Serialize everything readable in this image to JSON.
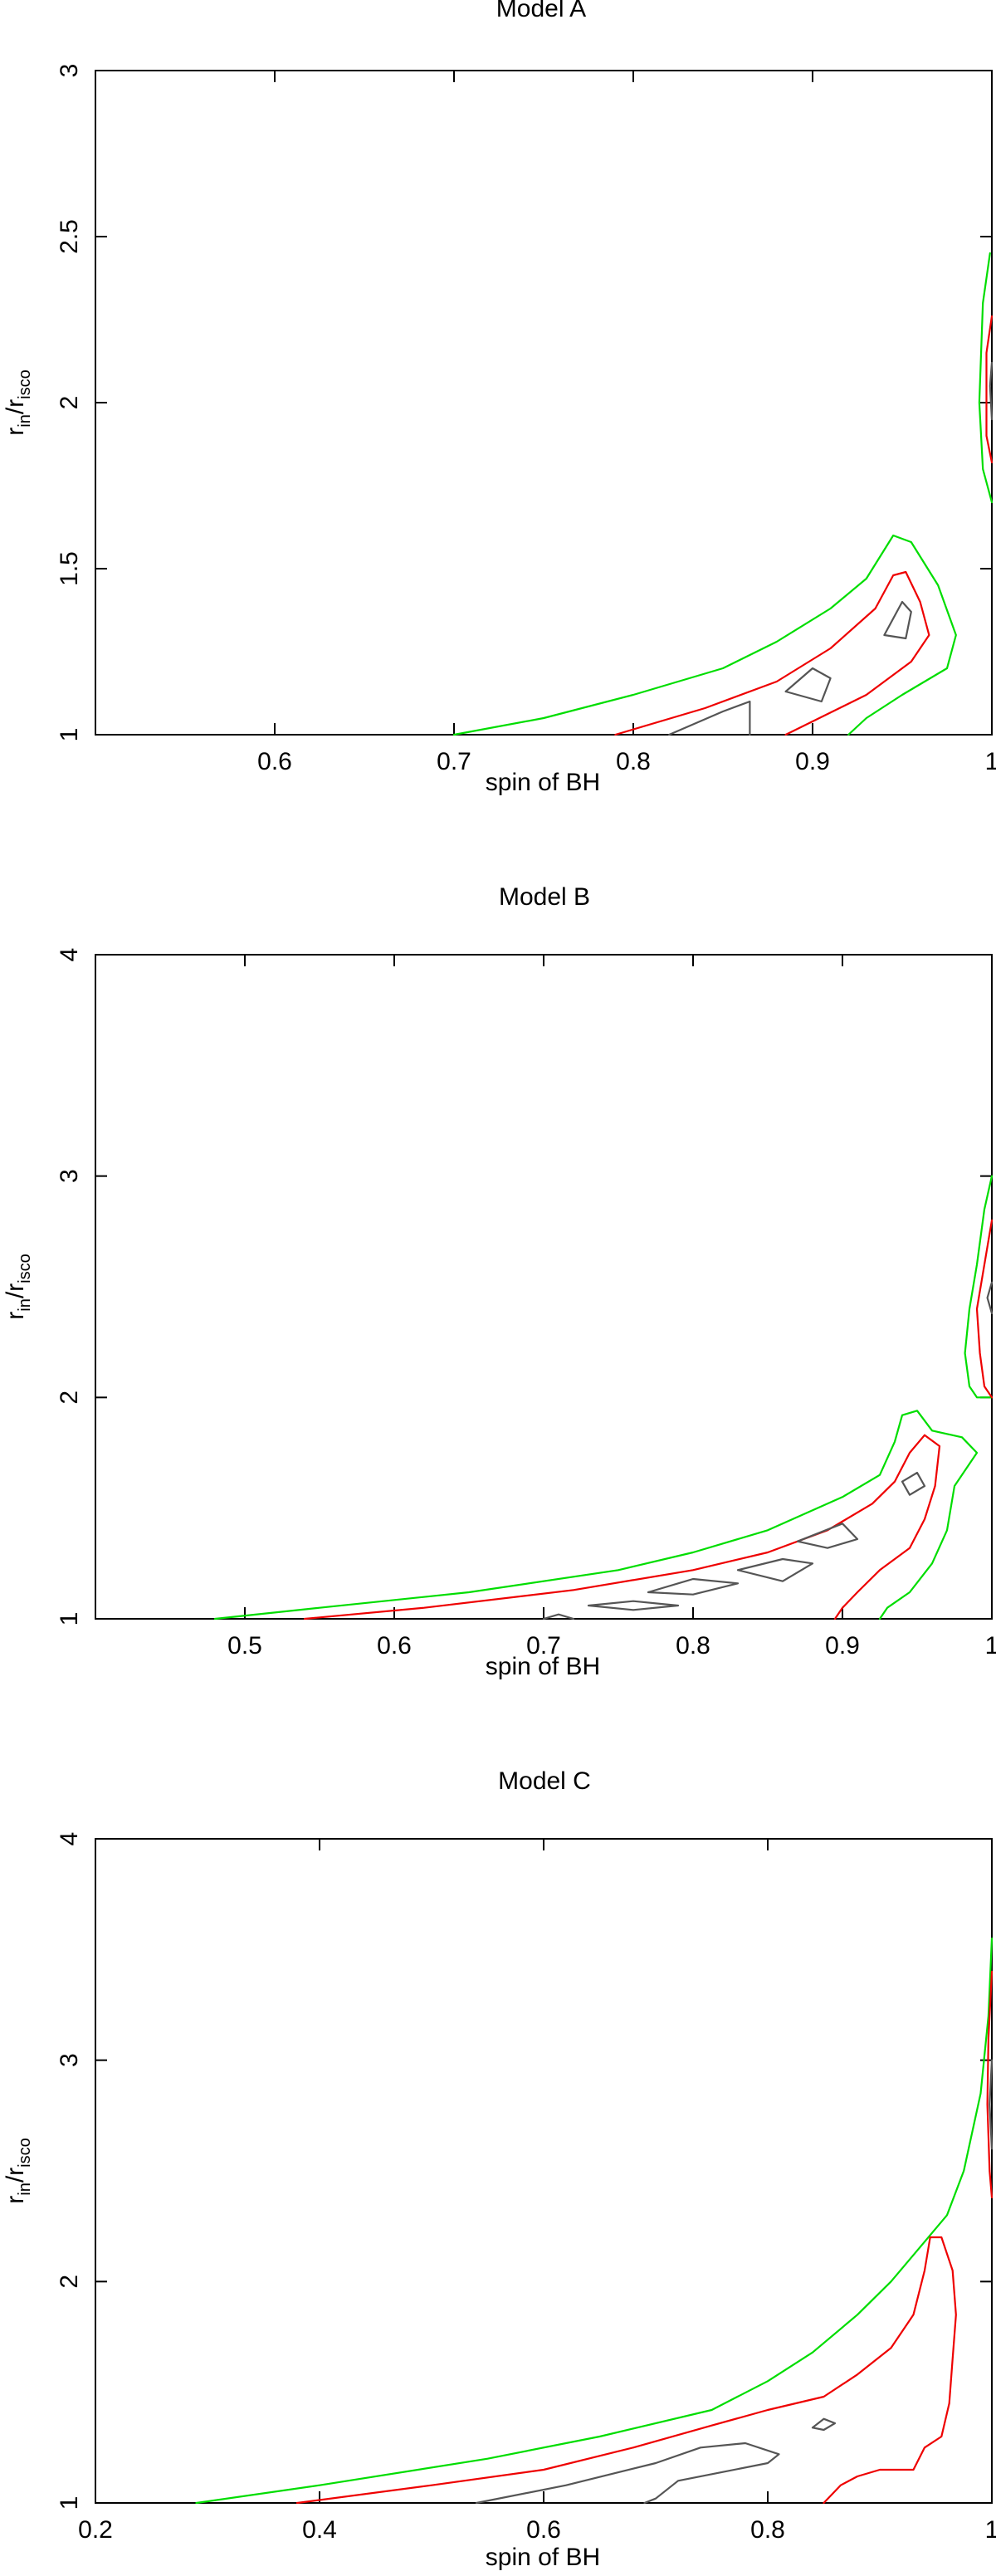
{
  "chart_data": [
    {
      "type": "contour",
      "title": "Model A",
      "xlabel": "spin of BH",
      "ylabel": {
        "main": "r",
        "sub1": "in",
        "slash": "/r",
        "sub2": "isco"
      },
      "xlim": [
        0.5,
        1.0
      ],
      "ylim": [
        1,
        3
      ],
      "xticks": [
        0.6,
        0.7,
        0.8,
        0.9,
        1
      ],
      "xtick_labels": [
        "0.6",
        "0.7",
        "0.8",
        "0.9",
        "1"
      ],
      "yticks": [
        1,
        1.5,
        2,
        2.5,
        3
      ],
      "ytick_labels": [
        "1",
        "1.5",
        "2",
        "2.5",
        "3"
      ],
      "contours": [
        {
          "level": "outer",
          "color": "#00dd00",
          "paths": [
            [
              [
                0.7,
                1.0
              ],
              [
                0.75,
                1.05
              ],
              [
                0.8,
                1.12
              ],
              [
                0.85,
                1.2
              ],
              [
                0.88,
                1.28
              ],
              [
                0.91,
                1.38
              ],
              [
                0.93,
                1.47
              ],
              [
                0.945,
                1.6
              ],
              [
                0.955,
                1.58
              ],
              [
                0.97,
                1.45
              ],
              [
                0.98,
                1.3
              ],
              [
                0.975,
                1.2
              ],
              [
                0.95,
                1.12
              ],
              [
                0.93,
                1.05
              ],
              [
                0.92,
                1.0
              ]
            ],
            [
              [
                0.999,
                2.45
              ],
              [
                0.995,
                2.3
              ],
              [
                0.993,
                2.0
              ],
              [
                0.995,
                1.8
              ],
              [
                1.0,
                1.7
              ]
            ]
          ]
        },
        {
          "level": "middle",
          "color": "#ee0000",
          "paths": [
            [
              [
                0.79,
                1.0
              ],
              [
                0.84,
                1.08
              ],
              [
                0.88,
                1.16
              ],
              [
                0.91,
                1.26
              ],
              [
                0.935,
                1.38
              ],
              [
                0.945,
                1.48
              ],
              [
                0.952,
                1.49
              ],
              [
                0.96,
                1.4
              ],
              [
                0.965,
                1.3
              ],
              [
                0.955,
                1.22
              ],
              [
                0.93,
                1.12
              ],
              [
                0.9,
                1.04
              ],
              [
                0.885,
                1.0
              ]
            ],
            [
              [
                1.0,
                2.26
              ],
              [
                0.997,
                2.15
              ],
              [
                0.997,
                1.9
              ],
              [
                1.0,
                1.82
              ]
            ]
          ]
        },
        {
          "level": "inner",
          "color": "#555555",
          "paths": [
            [
              [
                0.82,
                1.0
              ],
              [
                0.85,
                1.07
              ],
              [
                0.865,
                1.1
              ],
              [
                0.865,
                1.0
              ]
            ],
            [
              [
                0.885,
                1.13
              ],
              [
                0.9,
                1.2
              ],
              [
                0.91,
                1.17
              ],
              [
                0.905,
                1.1
              ],
              [
                0.885,
                1.13
              ]
            ],
            [
              [
                0.94,
                1.3
              ],
              [
                0.95,
                1.4
              ],
              [
                0.955,
                1.37
              ],
              [
                0.952,
                1.29
              ],
              [
                0.94,
                1.3
              ]
            ],
            [
              [
                1.0,
                2.12
              ],
              [
                0.999,
                2.05
              ],
              [
                1.0,
                1.95
              ]
            ]
          ]
        }
      ]
    },
    {
      "type": "contour",
      "title": "Model B",
      "xlabel": "spin of BH",
      "ylabel": {
        "main": "r",
        "sub1": "in",
        "slash": "/r",
        "sub2": "isco"
      },
      "xlim": [
        0.4,
        1.0
      ],
      "ylim": [
        1,
        4
      ],
      "xticks": [
        0.5,
        0.6,
        0.7,
        0.8,
        0.9,
        1
      ],
      "xtick_labels": [
        "0.5",
        "0.6",
        "0.7",
        "0.8",
        "0.9",
        "1"
      ],
      "yticks": [
        1,
        2,
        3,
        4
      ],
      "ytick_labels": [
        "1",
        "2",
        "3",
        "4"
      ],
      "contours": [
        {
          "level": "outer",
          "color": "#00dd00",
          "paths": [
            [
              [
                0.48,
                1.0
              ],
              [
                0.55,
                1.05
              ],
              [
                0.65,
                1.12
              ],
              [
                0.75,
                1.22
              ],
              [
                0.8,
                1.3
              ],
              [
                0.85,
                1.4
              ],
              [
                0.9,
                1.55
              ],
              [
                0.925,
                1.65
              ],
              [
                0.935,
                1.8
              ],
              [
                0.94,
                1.92
              ],
              [
                0.95,
                1.94
              ],
              [
                0.96,
                1.85
              ],
              [
                0.98,
                1.82
              ],
              [
                0.99,
                1.75
              ],
              [
                0.975,
                1.6
              ],
              [
                0.97,
                1.4
              ],
              [
                0.96,
                1.25
              ],
              [
                0.945,
                1.12
              ],
              [
                0.93,
                1.05
              ],
              [
                0.925,
                1.0
              ]
            ],
            [
              [
                1.0,
                3.0
              ],
              [
                0.995,
                2.85
              ],
              [
                0.99,
                2.6
              ],
              [
                0.985,
                2.4
              ],
              [
                0.982,
                2.2
              ],
              [
                0.985,
                2.05
              ],
              [
                0.99,
                2.0
              ],
              [
                1.0,
                2.0
              ]
            ]
          ]
        },
        {
          "level": "middle",
          "color": "#ee0000",
          "paths": [
            [
              [
                0.54,
                1.0
              ],
              [
                0.62,
                1.05
              ],
              [
                0.72,
                1.13
              ],
              [
                0.8,
                1.22
              ],
              [
                0.85,
                1.3
              ],
              [
                0.89,
                1.4
              ],
              [
                0.92,
                1.52
              ],
              [
                0.935,
                1.62
              ],
              [
                0.945,
                1.75
              ],
              [
                0.955,
                1.83
              ],
              [
                0.965,
                1.78
              ],
              [
                0.962,
                1.6
              ],
              [
                0.955,
                1.45
              ],
              [
                0.945,
                1.32
              ],
              [
                0.925,
                1.22
              ],
              [
                0.91,
                1.12
              ],
              [
                0.9,
                1.05
              ],
              [
                0.895,
                1.0
              ]
            ],
            [
              [
                1.0,
                2.8
              ],
              [
                0.995,
                2.6
              ],
              [
                0.99,
                2.4
              ],
              [
                0.992,
                2.2
              ],
              [
                0.995,
                2.05
              ],
              [
                1.0,
                2.0
              ]
            ]
          ]
        },
        {
          "level": "inner",
          "color": "#555555",
          "paths": [
            [
              [
                0.7,
                1.0
              ],
              [
                0.71,
                1.02
              ],
              [
                0.72,
                1.0
              ]
            ],
            [
              [
                0.73,
                1.06
              ],
              [
                0.76,
                1.08
              ],
              [
                0.79,
                1.06
              ],
              [
                0.76,
                1.04
              ],
              [
                0.73,
                1.06
              ]
            ],
            [
              [
                0.77,
                1.12
              ],
              [
                0.8,
                1.18
              ],
              [
                0.83,
                1.16
              ],
              [
                0.8,
                1.11
              ],
              [
                0.77,
                1.12
              ]
            ],
            [
              [
                0.83,
                1.22
              ],
              [
                0.86,
                1.27
              ],
              [
                0.88,
                1.25
              ],
              [
                0.86,
                1.17
              ],
              [
                0.83,
                1.22
              ]
            ],
            [
              [
                0.87,
                1.35
              ],
              [
                0.9,
                1.43
              ],
              [
                0.91,
                1.36
              ],
              [
                0.89,
                1.32
              ],
              [
                0.87,
                1.35
              ]
            ],
            [
              [
                0.94,
                1.62
              ],
              [
                0.95,
                1.66
              ],
              [
                0.955,
                1.6
              ],
              [
                0.945,
                1.56
              ],
              [
                0.94,
                1.62
              ]
            ],
            [
              [
                1.0,
                2.52
              ],
              [
                0.997,
                2.45
              ],
              [
                1.0,
                2.38
              ]
            ]
          ]
        }
      ]
    },
    {
      "type": "contour",
      "title": "Model C",
      "xlabel": "spin of BH",
      "ylabel": {
        "main": "r",
        "sub1": "in",
        "slash": "/r",
        "sub2": "isco"
      },
      "xlim": [
        0.2,
        1.0
      ],
      "ylim": [
        1,
        4
      ],
      "xticks": [
        0.2,
        0.4,
        0.6,
        0.8,
        1
      ],
      "xtick_labels": [
        "0.2",
        "0.4",
        "0.6",
        "0.8",
        "1"
      ],
      "yticks": [
        1,
        2,
        3,
        4
      ],
      "ytick_labels": [
        "1",
        "2",
        "3",
        "4"
      ],
      "contours": [
        {
          "level": "outer",
          "color": "#00dd00",
          "paths": [
            [
              [
                0.29,
                1.0
              ],
              [
                0.4,
                1.08
              ],
              [
                0.55,
                1.2
              ],
              [
                0.65,
                1.3
              ],
              [
                0.75,
                1.42
              ],
              [
                0.8,
                1.55
              ],
              [
                0.84,
                1.68
              ],
              [
                0.88,
                1.85
              ],
              [
                0.91,
                2.0
              ],
              [
                0.935,
                2.15
              ],
              [
                0.96,
                2.3
              ],
              [
                0.975,
                2.5
              ],
              [
                0.99,
                2.85
              ],
              [
                0.997,
                3.2
              ],
              [
                1.0,
                3.55
              ]
            ]
          ]
        },
        {
          "level": "middle",
          "color": "#ee0000",
          "paths": [
            [
              [
                0.38,
                1.0
              ],
              [
                0.5,
                1.08
              ],
              [
                0.6,
                1.15
              ],
              [
                0.68,
                1.25
              ],
              [
                0.75,
                1.35
              ],
              [
                0.8,
                1.42
              ],
              [
                0.85,
                1.48
              ],
              [
                0.88,
                1.58
              ],
              [
                0.91,
                1.7
              ],
              [
                0.93,
                1.85
              ],
              [
                0.94,
                2.05
              ],
              [
                0.945,
                2.2
              ],
              [
                0.955,
                2.2
              ],
              [
                0.965,
                2.05
              ],
              [
                0.968,
                1.85
              ],
              [
                0.965,
                1.65
              ],
              [
                0.962,
                1.45
              ],
              [
                0.955,
                1.3
              ],
              [
                0.94,
                1.25
              ],
              [
                0.93,
                1.15
              ],
              [
                0.9,
                1.15
              ],
              [
                0.88,
                1.12
              ],
              [
                0.865,
                1.08
              ],
              [
                0.85,
                1.0
              ]
            ],
            [
              [
                1.0,
                3.4
              ],
              [
                0.997,
                3.1
              ],
              [
                0.996,
                2.8
              ],
              [
                0.998,
                2.5
              ],
              [
                1.0,
                2.38
              ]
            ]
          ]
        },
        {
          "level": "inner",
          "color": "#555555",
          "paths": [
            [
              [
                0.54,
                1.0
              ],
              [
                0.62,
                1.08
              ],
              [
                0.7,
                1.18
              ],
              [
                0.74,
                1.25
              ],
              [
                0.78,
                1.27
              ],
              [
                0.81,
                1.22
              ],
              [
                0.8,
                1.18
              ],
              [
                0.76,
                1.14
              ],
              [
                0.72,
                1.1
              ],
              [
                0.7,
                1.02
              ],
              [
                0.69,
                1.0
              ]
            ],
            [
              [
                0.84,
                1.34
              ],
              [
                0.85,
                1.38
              ],
              [
                0.86,
                1.36
              ],
              [
                0.85,
                1.33
              ],
              [
                0.84,
                1.34
              ]
            ],
            [
              [
                1.0,
                3.0
              ],
              [
                0.998,
                2.8
              ],
              [
                1.0,
                2.6
              ]
            ]
          ]
        }
      ]
    }
  ]
}
